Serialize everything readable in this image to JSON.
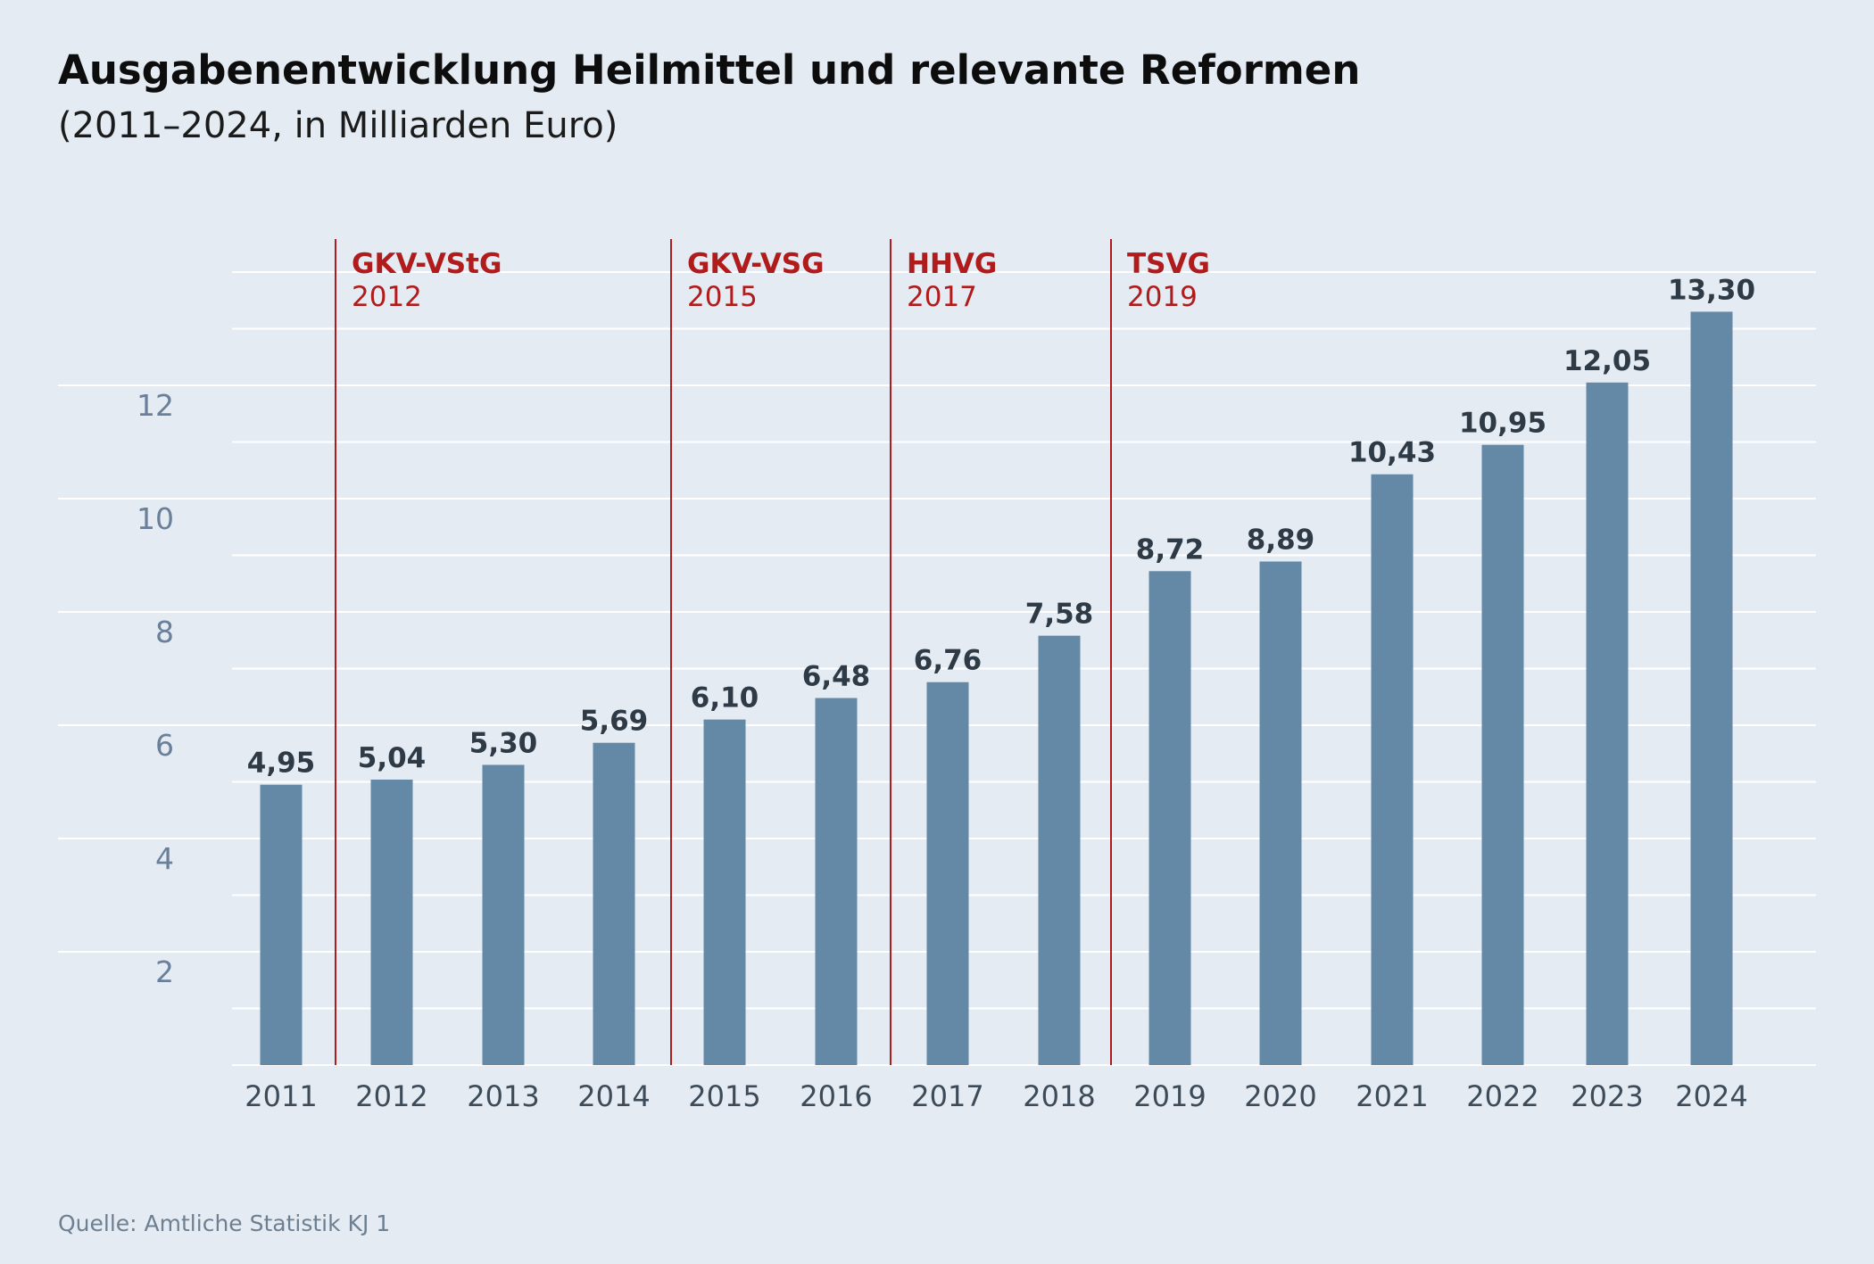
{
  "chart_data": {
    "type": "bar",
    "title": "Ausgabenentwicklung Heilmittel und relevante Reformen",
    "subtitle": "(2011–2024, in Milliarden Euro)",
    "source": "Quelle: Amtliche Statistik KJ 1",
    "categories": [
      "2011",
      "2012",
      "2013",
      "2014",
      "2015",
      "2016",
      "2017",
      "2018",
      "2019",
      "2020",
      "2021",
      "2022",
      "2023",
      "2024"
    ],
    "values": [
      4.95,
      5.04,
      5.3,
      5.69,
      6.1,
      6.48,
      6.76,
      7.58,
      8.72,
      8.89,
      10.43,
      10.95,
      12.05,
      13.3
    ],
    "value_labels": [
      "4,95",
      "5,04",
      "5,30",
      "5,69",
      "6,10",
      "6,48",
      "6,76",
      "7,58",
      "8,72",
      "8,89",
      "10,43",
      "10,95",
      "12,05",
      "13,30"
    ],
    "y_ticks": [
      2,
      4,
      6,
      8,
      10,
      12
    ],
    "ylim": [
      0,
      14
    ],
    "grid": true,
    "bar_color": "#6489a6",
    "reform_color": "#b01c1c",
    "reforms": [
      {
        "name": "GKV-VStG",
        "year": "2012"
      },
      {
        "name": "GKV-VSG",
        "year": "2015"
      },
      {
        "name": "HHVG",
        "year": "2017"
      },
      {
        "name": "TSVG",
        "year": "2019"
      }
    ]
  }
}
